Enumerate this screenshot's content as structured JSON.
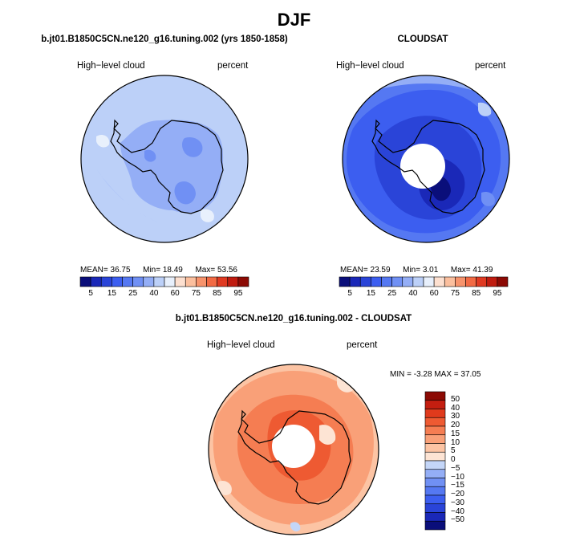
{
  "figure": {
    "season": "DJF",
    "colors": {
      "land_outline": "#000000",
      "background": "#ffffff"
    }
  },
  "chart_data": [
    {
      "type": "heatmap",
      "projection": "polar-stereographic-south",
      "title": "b.jt01.B1850C5CN.ne120_g16.tuning.002 (yrs 1850-1858)",
      "left_label": "High−level cloud",
      "right_label": "percent",
      "stats": {
        "mean_label": "MEAN=",
        "mean": 36.75,
        "min_label": "Min=",
        "min": 18.49,
        "max_label": "Max=",
        "max": 53.56
      },
      "levels": [
        5,
        10,
        15,
        20,
        25,
        30,
        40,
        50,
        60,
        70,
        75,
        80,
        85,
        90,
        95
      ],
      "colors": [
        "#0a0e7a",
        "#1a28b8",
        "#2a44d8",
        "#3c5ef0",
        "#5578f2",
        "#7090f4",
        "#94aef6",
        "#bcd0f8",
        "#e8f0fc",
        "#fde0d0",
        "#fbbf9e",
        "#f7936c",
        "#f26a44",
        "#e03a22",
        "#c01c10",
        "#8c0a04"
      ],
      "tick_labels": [
        "5",
        "15",
        "25",
        "40",
        "60",
        "75",
        "85",
        "95"
      ],
      "tick_values": [
        5,
        15,
        25,
        40,
        60,
        75,
        85,
        95
      ],
      "field_summary": "mostly 30-40 percent over the ocean, 25-30 percent patches over East Antarctica"
    },
    {
      "type": "heatmap",
      "projection": "polar-stereographic-south",
      "title": "CLOUDSAT",
      "left_label": "High−level cloud",
      "right_label": "percent",
      "stats": {
        "mean_label": "MEAN=",
        "mean": 23.59,
        "min_label": "Min=",
        "min": 3.01,
        "max_label": "Max=",
        "max": 41.39
      },
      "levels": [
        5,
        10,
        15,
        20,
        25,
        30,
        40,
        50,
        60,
        70,
        75,
        80,
        85,
        90,
        95
      ],
      "colors": [
        "#0a0e7a",
        "#1a28b8",
        "#2a44d8",
        "#3c5ef0",
        "#5578f2",
        "#7090f4",
        "#94aef6",
        "#bcd0f8",
        "#e8f0fc",
        "#fde0d0",
        "#fbbf9e",
        "#f7936c",
        "#f26a44",
        "#e03a22",
        "#c01c10",
        "#8c0a04"
      ],
      "tick_labels": [
        "5",
        "15",
        "25",
        "40",
        "60",
        "75",
        "85",
        "95"
      ],
      "tick_values": [
        5,
        15,
        25,
        40,
        60,
        75,
        85,
        95
      ],
      "field_summary": "15-30 percent over the ocean, lowest (5-15 percent) over the Antarctic interior, missing data near the pole"
    },
    {
      "type": "heatmap",
      "projection": "polar-stereographic-south",
      "title": "b.jt01.B1850C5CN.ne120_g16.tuning.002 - CLOUDSAT",
      "left_label": "High−level cloud",
      "right_label": "percent",
      "stats": {
        "min_label": "MIN =",
        "min": -3.28,
        "max_label": "MAX =",
        "max": 37.05
      },
      "levels": [
        -50,
        -40,
        -30,
        -20,
        -15,
        -10,
        -5,
        0,
        5,
        10,
        15,
        20,
        30,
        40,
        50
      ],
      "colors": [
        "#0a0e7a",
        "#1a28b8",
        "#2a44d8",
        "#3c5ef0",
        "#5578f2",
        "#7090f4",
        "#94aef6",
        "#c4d6f8",
        "#fde4d4",
        "#fcc4a4",
        "#f9a078",
        "#f57d52",
        "#ee5a32",
        "#e03a1c",
        "#c41e10",
        "#8c0a04"
      ],
      "tick_labels": [
        "50",
        "40",
        "30",
        "20",
        "15",
        "10",
        "5",
        "0",
        "−5",
        "−10",
        "−15",
        "−20",
        "−30",
        "−40",
        "−50"
      ],
      "tick_values": [
        50,
        40,
        30,
        20,
        15,
        10,
        5,
        0,
        -5,
        -10,
        -15,
        -20,
        -30,
        -40,
        -50
      ],
      "field_summary": "mostly positive differences of 5-20 percent, largest (20-30 percent) over the Antarctic interior, missing data near the pole"
    }
  ]
}
